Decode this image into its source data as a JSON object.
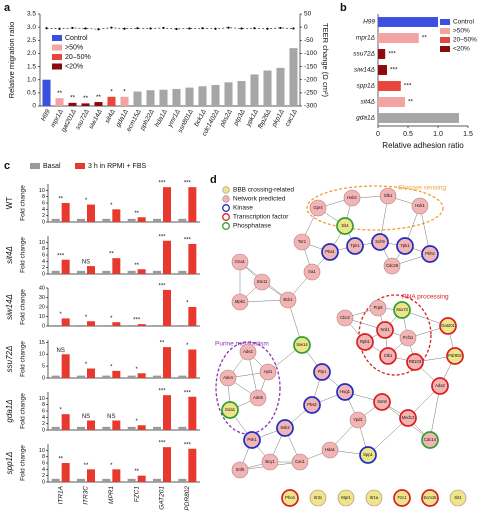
{
  "chart_data": [
    {
      "panel": "a",
      "type": "bar",
      "ylabel": "Relative migration ratio",
      "y2label": "TEER change (Ω cm²)",
      "categories": [
        "H99",
        "mpr1Δ",
        "gat201Δ",
        "ssu72Δ",
        "siw14Δ",
        "sit4Δ",
        "gda1Δ",
        "ecm15Δ",
        "pph22Δ",
        "hda1Δ",
        "ymr1Δ",
        "ssn801Δ",
        "bck1Δ",
        "cdc1402Δ",
        "pbs2Δ",
        "ptp3Δ",
        "ypk1Δ",
        "fbp26Δ",
        "pkp1Δ",
        "cac1Δ"
      ],
      "values": [
        1.0,
        0.3,
        0.12,
        0.1,
        0.15,
        0.35,
        0.35,
        0.55,
        0.6,
        0.62,
        0.65,
        0.7,
        0.75,
        0.8,
        0.9,
        0.95,
        1.2,
        1.35,
        1.45,
        2.2
      ],
      "colors": [
        "#3b4fe0",
        "#f4a3a3",
        "#8b0a0a",
        "#8b0a0a",
        "#8b0a0a",
        "#e8453c",
        "#f4a3a3",
        "#a6a6a6",
        "#a6a6a6",
        "#a6a6a6",
        "#a6a6a6",
        "#a6a6a6",
        "#a6a6a6",
        "#a6a6a6",
        "#a6a6a6",
        "#a6a6a6",
        "#a6a6a6",
        "#a6a6a6",
        "#a6a6a6",
        "#a6a6a6"
      ],
      "annotations": [
        null,
        "**",
        "**",
        "**",
        "**",
        "*",
        "*",
        null,
        null,
        null,
        null,
        null,
        null,
        null,
        null,
        null,
        null,
        null,
        null,
        null
      ],
      "ylim": [
        0,
        3.5
      ],
      "yticks": [
        0,
        0.5,
        {
          "value": 1,
          "label": "1.0"
        },
        1.5,
        {
          "value": 2,
          "label": "2.0"
        },
        2.5,
        {
          "value": 3,
          "label": "3.0"
        },
        3.5
      ],
      "y2lim": [
        -300,
        50
      ],
      "y2ticks": [
        50,
        0,
        -50,
        -100,
        -150,
        -200,
        -250,
        -300
      ],
      "y2_series": {
        "axis": "y2",
        "color": "#000000",
        "values": [
          -4,
          -6,
          -3,
          -5,
          -8,
          -2,
          -6,
          -4,
          -5,
          -3,
          -7,
          -5,
          -4,
          -6,
          -2,
          -5,
          -4,
          -6,
          -3,
          -5
        ]
      },
      "legend": [
        {
          "name": "Control",
          "color": "#3b4fe0"
        },
        {
          "name": ">50%",
          "color": "#f4a3a3"
        },
        {
          "name": "20–50%",
          "color": "#e8453c"
        },
        {
          "name": "<20%",
          "color": "#8b0a0a"
        }
      ]
    },
    {
      "panel": "b",
      "type": "barh",
      "xlabel": "Relative adhesion ratio",
      "categories": [
        "H99",
        "mpr1Δ",
        "ssu72Δ",
        "siw14Δ",
        "spp1Δ",
        "sit4Δ",
        "gda1Δ"
      ],
      "values": [
        1.0,
        0.68,
        0.12,
        0.15,
        0.38,
        0.45,
        1.35
      ],
      "colors": [
        "#3b4fe0",
        "#f4a3a3",
        "#8b0a0a",
        "#8b0a0a",
        "#e8453c",
        "#f4a3a3",
        "#a6a6a6"
      ],
      "annotations": [
        null,
        "**",
        "***",
        "***",
        "***",
        "**",
        null
      ],
      "xlim": [
        0,
        1.5
      ],
      "xticks": [
        0,
        0.5,
        {
          "value": 1,
          "label": "1.0"
        },
        1.5
      ],
      "legend": [
        {
          "name": "Control",
          "color": "#3b4fe0"
        },
        {
          "name": ">50%",
          "color": "#f4a3a3"
        },
        {
          "name": "20–50%",
          "color": "#e8453c"
        },
        {
          "name": "<20%",
          "color": "#8b0a0a"
        }
      ]
    },
    {
      "panel": "c",
      "type": "bar-grid",
      "ylabel": "Fold change",
      "categories": [
        "ITR1A",
        "ITR3C",
        "MPR1",
        "FZC1",
        "GAT201",
        "PDR802"
      ],
      "series": [
        {
          "name": "Basal",
          "color": "#9a9a9a"
        },
        {
          "name": "3 h in RPMI + FBS",
          "color": "#e8392f"
        }
      ],
      "rows": [
        {
          "label": "WT",
          "ylim": [
            0,
            12
          ],
          "yticks": [
            0,
            2,
            4,
            6,
            8,
            10
          ],
          "values": [
            [
              1,
              1,
              1,
              1,
              1,
              1
            ],
            [
              6,
              5.5,
              4,
              1.5,
              11,
              11
            ]
          ],
          "annotations": [
            "**",
            "*",
            "*",
            "**",
            "***",
            "***"
          ]
        },
        {
          "label": "sit4Δ",
          "ylim": [
            0,
            12
          ],
          "yticks": [
            0,
            2,
            4,
            6,
            8,
            10
          ],
          "values": [
            [
              1,
              1,
              1,
              1,
              1,
              1
            ],
            [
              4.5,
              2.5,
              5,
              1.5,
              10.5,
              9.5
            ]
          ],
          "annotations": [
            "***",
            "NS",
            "**",
            "**",
            "***",
            "***"
          ]
        },
        {
          "label": "siw14Δ",
          "ylim": [
            0,
            40
          ],
          "yticks": [
            0,
            10,
            20,
            30,
            40
          ],
          "values": [
            [
              1,
              1,
              1,
              1,
              1,
              1
            ],
            [
              8,
              5,
              4,
              2,
              38,
              20
            ]
          ],
          "annotations": [
            "*",
            "*",
            "*",
            "***",
            "***",
            "*"
          ]
        },
        {
          "label": "ssu72Δ",
          "ylim": [
            0,
            16
          ],
          "yticks": [
            0,
            5,
            10,
            15
          ],
          "values": [
            [
              1,
              1,
              1,
              1,
              1,
              1
            ],
            [
              10,
              4,
              3,
              2,
              13,
              12
            ]
          ],
          "annotations": [
            "NS",
            "*",
            "*",
            "*",
            "**",
            "*"
          ]
        },
        {
          "label": "gda1Δ",
          "ylim": [
            0,
            12
          ],
          "yticks": [
            0,
            2,
            4,
            6,
            8,
            10
          ],
          "values": [
            [
              1,
              1,
              1,
              1,
              1,
              1
            ],
            [
              5,
              3,
              3,
              1.5,
              11,
              10.5
            ]
          ],
          "annotations": [
            "*",
            "NS",
            "NS",
            "*",
            "***",
            "***"
          ]
        },
        {
          "label": "spp1Δ",
          "ylim": [
            0,
            12
          ],
          "yticks": [
            0,
            2,
            4,
            6,
            8,
            10
          ],
          "values": [
            [
              1,
              1,
              1,
              1,
              1,
              1
            ],
            [
              6,
              4,
              4,
              2,
              11,
              10.5
            ]
          ],
          "annotations": [
            "**",
            "**",
            "*",
            "**",
            "***",
            "***"
          ]
        }
      ]
    }
  ],
  "diagram": {
    "panel": "d",
    "legend": [
      {
        "label": "BBB crossing-related",
        "fill": "#eee58a"
      },
      {
        "label": "Network predicted",
        "fill": "#f3b4b4"
      },
      {
        "label": "Kinase",
        "ring": "#1f2fbf"
      },
      {
        "label": "Transcription factor",
        "ring": "#d92020"
      },
      {
        "label": "Phosphatase",
        "ring": "#2fa02f"
      }
    ],
    "groups": [
      {
        "label": "Glucose sensing",
        "color": "#f0a030"
      },
      {
        "label": "RNA processing",
        "color": "#d92020"
      },
      {
        "label": "Purine metabolism",
        "color": "#8a35b0"
      }
    ],
    "nodes": [
      {
        "label": "Gpr4",
        "group": "Network predicted"
      },
      {
        "label": "Hxk2",
        "group": "Network predicted"
      },
      {
        "label": "Glk1",
        "group": "Network predicted"
      },
      {
        "label": "Hxk1",
        "group": "Network predicted"
      },
      {
        "label": "Sit4",
        "group": "BBB crossing-related",
        "ring": "Phosphatase"
      },
      {
        "label": "Tor1",
        "group": "Network predicted"
      },
      {
        "label": "Pka1",
        "group": "Network predicted",
        "ring": "Kinase"
      },
      {
        "label": "Tpk1",
        "group": "Network predicted",
        "ring": "Kinase"
      },
      {
        "label": "Sch9",
        "group": "Network predicted",
        "ring": "Kinase"
      },
      {
        "label": "Ypk1",
        "group": "Network predicted",
        "ring": "Kinase"
      },
      {
        "label": "Pkh2",
        "group": "Network predicted",
        "ring": "Kinase"
      },
      {
        "label": "Cdc28",
        "group": "Network predicted"
      },
      {
        "label": "Ira1",
        "group": "Network predicted"
      },
      {
        "label": "Cna1",
        "group": "Network predicted"
      },
      {
        "label": "Ste11",
        "group": "Network predicted"
      },
      {
        "label": "Mpk1",
        "group": "Network predicted"
      },
      {
        "label": "Bck1",
        "group": "Network predicted"
      },
      {
        "label": "Cbc2",
        "group": "Network predicted"
      },
      {
        "label": "Prp8",
        "group": "Network predicted"
      },
      {
        "label": "Ssu72",
        "group": "BBB crossing-related",
        "ring": "Phosphatase"
      },
      {
        "label": "Nrd1",
        "group": "Network predicted",
        "ring": "Transcription factor"
      },
      {
        "label": "Rpb1",
        "group": "Network predicted",
        "ring": "Transcription factor"
      },
      {
        "label": "Pcf11",
        "group": "Network predicted"
      },
      {
        "label": "Ctk1",
        "group": "Network predicted",
        "ring": "Transcription factor"
      },
      {
        "label": "Rtt103",
        "group": "Network predicted",
        "ring": "Transcription factor"
      },
      {
        "label": "Gat201",
        "group": "BBB crossing-related",
        "ring": "Transcription factor"
      },
      {
        "label": "Pdr802",
        "group": "BBB crossing-related",
        "ring": "Transcription factor"
      },
      {
        "label": "Ada2",
        "group": "Network predicted",
        "ring": "Transcription factor"
      },
      {
        "label": "Ade2",
        "group": "Network predicted"
      },
      {
        "label": "Ade4",
        "group": "Network predicted"
      },
      {
        "label": "Apt1",
        "group": "Network predicted"
      },
      {
        "label": "Ade5",
        "group": "Network predicted"
      },
      {
        "label": "Gda1",
        "group": "BBB crossing-related",
        "ring": "Phosphatase"
      },
      {
        "label": "Siw14",
        "group": "BBB crossing-related",
        "ring": "Phosphatase"
      },
      {
        "label": "Ptp1",
        "group": "Network predicted",
        "ring": "Kinase"
      },
      {
        "label": "Hog1",
        "group": "Network predicted",
        "ring": "Kinase"
      },
      {
        "label": "Pbs2",
        "group": "Network predicted",
        "ring": "Kinase"
      },
      {
        "label": "Ssk2",
        "group": "Network predicted",
        "ring": "Kinase"
      },
      {
        "label": "Ypd1",
        "group": "Network predicted"
      },
      {
        "label": "Ssn8",
        "group": "Network predicted",
        "ring": "Transcription factor"
      },
      {
        "label": "Med13",
        "group": "Network predicted",
        "ring": "Transcription factor"
      },
      {
        "label": "Cdc14",
        "group": "Network predicted",
        "ring": "Phosphatase"
      },
      {
        "label": "Psk1",
        "group": "Network predicted",
        "ring": "Kinase"
      },
      {
        "label": "Bcy1",
        "group": "Network predicted"
      },
      {
        "label": "Snf5",
        "group": "Network predicted"
      },
      {
        "label": "Cac1",
        "group": "Network predicted"
      },
      {
        "label": "Hda1",
        "group": "Network predicted"
      },
      {
        "label": "Spp1",
        "group": "BBB crossing-related",
        "ring": "Kinase"
      },
      {
        "label": "Pho4",
        "group": "BBB crossing-related",
        "ring": "Transcription factor"
      },
      {
        "label": "Itr3c",
        "group": "BBB crossing-related"
      },
      {
        "label": "Mpr1",
        "group": "BBB crossing-related"
      },
      {
        "label": "Itr1a",
        "group": "BBB crossing-related"
      },
      {
        "label": "Fzc1",
        "group": "BBB crossing-related",
        "ring": "Transcription factor"
      },
      {
        "label": "Ecm15",
        "group": "BBB crossing-related",
        "ring": "Transcription factor"
      },
      {
        "label": "Sit1",
        "group": "BBB crossing-related"
      }
    ]
  }
}
